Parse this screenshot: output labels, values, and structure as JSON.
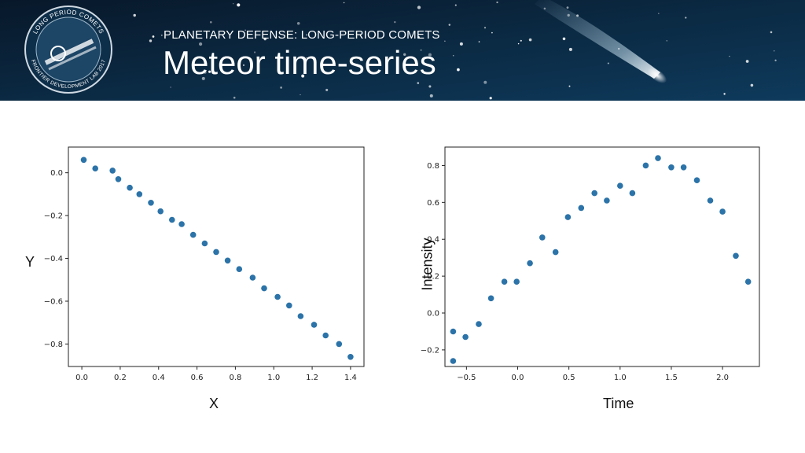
{
  "header": {
    "subtitle": "PLANETARY DEFENSE: LONG-PERIOD COMETS",
    "title": "Meteor time-series",
    "logo": {
      "top_text": "LONG PERIOD COMETS",
      "bottom_text": "FRONTIER DEVELOPMENT LAB 2017"
    }
  },
  "colors": {
    "banner": "#0a2338",
    "marker": "#2b73a8",
    "axis": "#222222"
  },
  "chart_data": [
    {
      "type": "scatter",
      "title": "",
      "xlabel": "X",
      "ylabel": "Y",
      "xlim": [
        -0.07,
        1.47
      ],
      "ylim": [
        -0.905,
        0.12
      ],
      "xticks": [
        0.0,
        0.2,
        0.4,
        0.6,
        0.8,
        1.0,
        1.2,
        1.4
      ],
      "xtick_labels": [
        "0.0",
        "0.2",
        "0.4",
        "0.6",
        "0.8",
        "1.0",
        "1.2",
        "1.4"
      ],
      "yticks": [
        0.0,
        -0.2,
        -0.4,
        -0.6,
        -0.8
      ],
      "ytick_labels": [
        "0.0",
        "−0.2",
        "−0.4",
        "−0.6",
        "−0.8"
      ],
      "grid": false,
      "x": [
        0.01,
        0.07,
        0.16,
        0.19,
        0.25,
        0.3,
        0.36,
        0.41,
        0.47,
        0.52,
        0.58,
        0.64,
        0.7,
        0.76,
        0.82,
        0.89,
        0.95,
        1.02,
        1.08,
        1.14,
        1.21,
        1.27,
        1.34,
        1.4
      ],
      "y": [
        0.06,
        0.02,
        0.01,
        -0.03,
        -0.07,
        -0.1,
        -0.14,
        -0.18,
        -0.22,
        -0.24,
        -0.29,
        -0.33,
        -0.37,
        -0.41,
        -0.45,
        -0.49,
        -0.54,
        -0.58,
        -0.62,
        -0.67,
        -0.71,
        -0.76,
        -0.8,
        -0.86
      ]
    },
    {
      "type": "scatter",
      "title": "",
      "xlabel": "Time",
      "ylabel": "Intensity",
      "xlim": [
        -0.71,
        2.36
      ],
      "ylim": [
        -0.29,
        0.9
      ],
      "xticks": [
        -0.5,
        0.0,
        0.5,
        1.0,
        1.5,
        2.0
      ],
      "xtick_labels": [
        "−0.5",
        "0.0",
        "0.5",
        "1.0",
        "1.5",
        "2.0"
      ],
      "yticks": [
        -0.2,
        0.0,
        0.2,
        0.4,
        0.6,
        0.8
      ],
      "ytick_labels": [
        "−0.2",
        "0.0",
        "0.2",
        "0.4",
        "0.6",
        "0.8"
      ],
      "grid": false,
      "x": [
        -0.63,
        -0.63,
        -0.51,
        -0.38,
        -0.26,
        -0.13,
        -0.01,
        0.12,
        0.24,
        0.37,
        0.49,
        0.62,
        0.75,
        0.87,
        1.0,
        1.12,
        1.25,
        1.37,
        1.5,
        1.62,
        1.75,
        1.88,
        2.0,
        2.13,
        2.25
      ],
      "y": [
        -0.26,
        -0.1,
        -0.13,
        -0.06,
        0.08,
        0.17,
        0.17,
        0.27,
        0.41,
        0.33,
        0.52,
        0.57,
        0.65,
        0.61,
        0.69,
        0.65,
        0.8,
        0.84,
        0.79,
        0.79,
        0.72,
        0.61,
        0.55,
        0.31,
        0.17
      ]
    }
  ]
}
